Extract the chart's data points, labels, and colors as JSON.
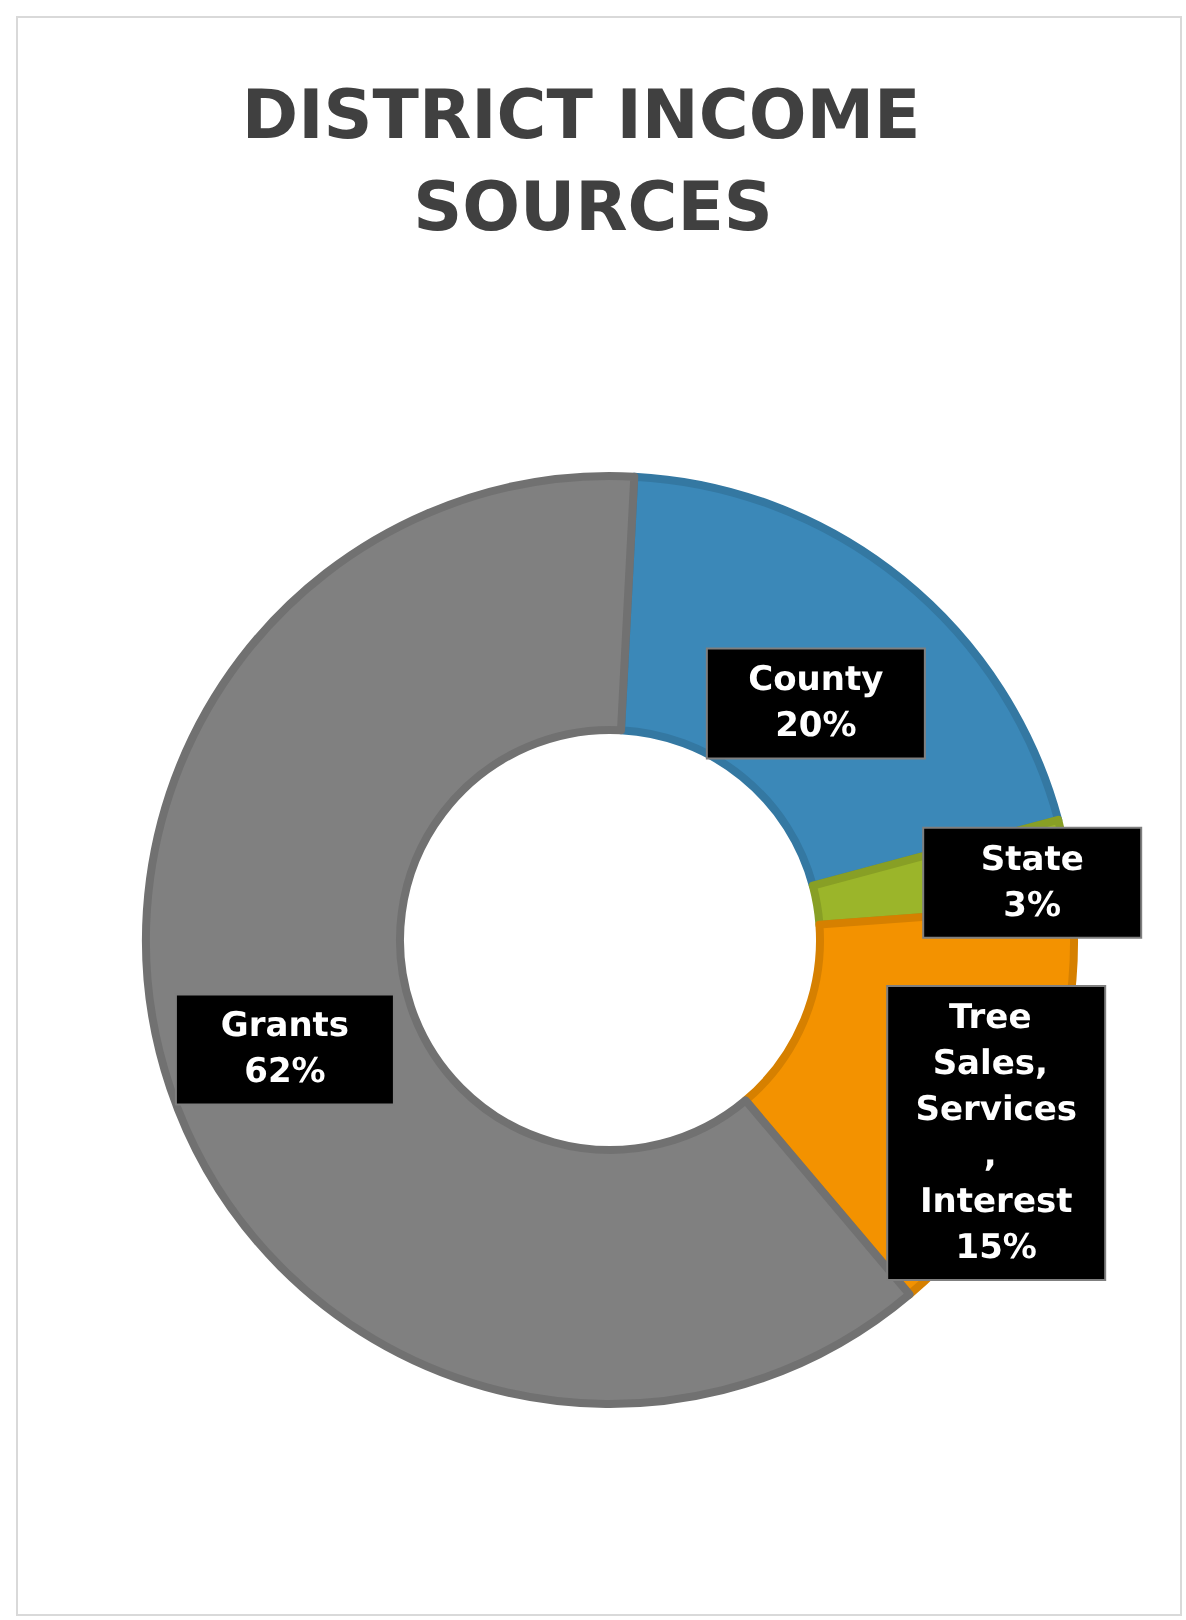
{
  "chart_data": {
    "type": "donut",
    "title": "DISTRICT INCOME SOURCES",
    "categories": [
      "County",
      "State",
      "Tree Sales, Services, Interest",
      "Grants"
    ],
    "values": [
      20,
      3,
      15,
      62
    ],
    "colors": [
      "#3b88b8",
      "#9bb52a",
      "#f39200",
      "#808080"
    ],
    "value_labels": [
      "20%",
      "3%",
      "15%",
      "62%"
    ],
    "legend": false
  }
}
